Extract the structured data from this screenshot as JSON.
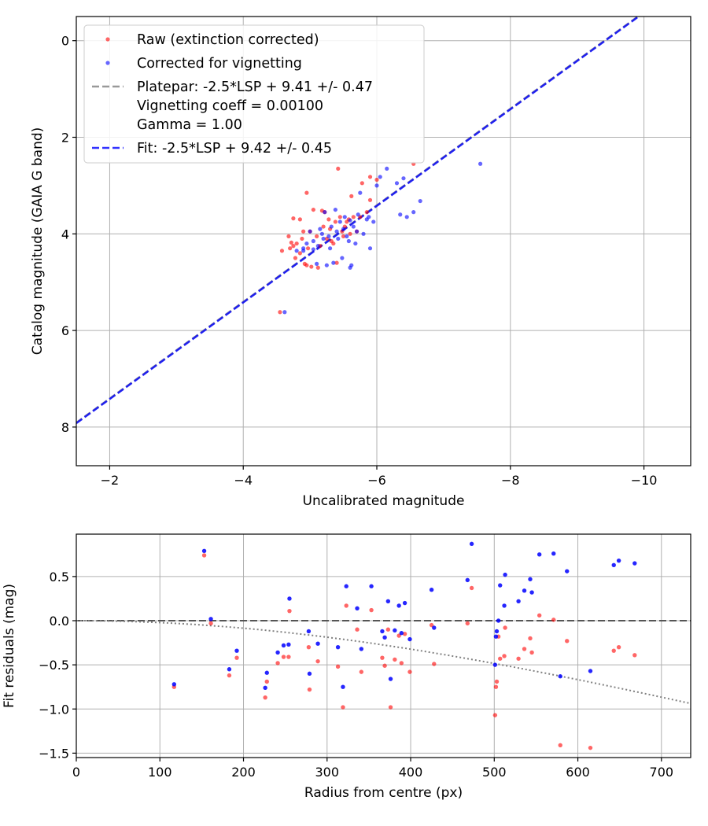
{
  "chart_data": [
    {
      "type": "scatter",
      "xlabel": "Uncalibrated magnitude",
      "ylabel": "Catalog magnitude (GAIA G band)",
      "xlim": [
        -1.5,
        -10.7
      ],
      "ylim": [
        8.8,
        -0.5
      ],
      "x_inverted": true,
      "y_inverted": true,
      "xticks": [
        -2,
        -4,
        -6,
        -8,
        -10
      ],
      "xtick_labels": [
        "−2",
        "−4",
        "−6",
        "−8",
        "−10"
      ],
      "yticks": [
        0,
        2,
        4,
        6,
        8
      ],
      "ytick_labels": [
        "0",
        "2",
        "4",
        "6",
        "8"
      ],
      "grid": true,
      "legend_position": "top-left",
      "legend": [
        {
          "label": "Raw (extinction corrected)",
          "kind": "marker",
          "color": "#ff0000"
        },
        {
          "label": "Corrected for vignetting",
          "kind": "marker",
          "color": "#0000ff"
        },
        {
          "label": "Platepar: -2.5*LSP + 9.41 +/- 0.47",
          "kind": "dashed",
          "color": "#808080"
        },
        {
          "label": "Vignetting coeff = 0.00100",
          "kind": "none",
          "color": ""
        },
        {
          "label": "Gamma = 1.00",
          "kind": "none",
          "color": ""
        },
        {
          "label": "Fit: -2.5*LSP + 9.42 +/- 0.45",
          "kind": "dashed",
          "color": "#0000ff"
        }
      ],
      "series": [
        {
          "name": "Raw (extinction corrected)",
          "color": "#ff0000",
          "points": [
            [
              -4.55,
              5.62
            ],
            [
              -4.58,
              4.35
            ],
            [
              -4.68,
              4.05
            ],
            [
              -4.7,
              4.3
            ],
            [
              -4.75,
              4.25
            ],
            [
              -4.72,
              4.18
            ],
            [
              -4.78,
              4.5
            ],
            [
              -4.8,
              4.2
            ],
            [
              -4.85,
              4.4
            ],
            [
              -4.88,
              4.1
            ],
            [
              -4.9,
              3.95
            ],
            [
              -4.92,
              4.62
            ],
            [
              -4.95,
              4.65
            ],
            [
              -4.97,
              4.3
            ],
            [
              -5.0,
              3.95
            ],
            [
              -5.02,
              4.68
            ],
            [
              -5.05,
              3.5
            ],
            [
              -5.1,
              4.05
            ],
            [
              -5.12,
              4.7
            ],
            [
              -5.15,
              4.25
            ],
            [
              -5.2,
              3.85
            ],
            [
              -5.22,
              3.55
            ],
            [
              -5.25,
              4.1
            ],
            [
              -5.28,
              3.7
            ],
            [
              -5.3,
              3.9
            ],
            [
              -5.32,
              4.15
            ],
            [
              -5.35,
              4.2
            ],
            [
              -5.38,
              3.75
            ],
            [
              -5.4,
              4.6
            ],
            [
              -5.42,
              2.65
            ],
            [
              -5.45,
              3.65
            ],
            [
              -5.48,
              3.95
            ],
            [
              -5.5,
              4.05
            ],
            [
              -5.52,
              3.85
            ],
            [
              -5.55,
              3.75
            ],
            [
              -5.58,
              3.7
            ],
            [
              -5.6,
              4.0
            ],
            [
              -5.62,
              3.22
            ],
            [
              -5.65,
              3.65
            ],
            [
              -5.7,
              3.95
            ],
            [
              -5.75,
              3.65
            ],
            [
              -5.78,
              2.95
            ],
            [
              -5.85,
              3.55
            ],
            [
              -5.9,
              3.3
            ],
            [
              -5.9,
              2.82
            ],
            [
              -6.0,
              2.88
            ],
            [
              -6.55,
              2.55
            ],
            [
              -4.85,
              3.7
            ],
            [
              -4.95,
              3.15
            ],
            [
              -5.18,
              3.52
            ],
            [
              -4.75,
              3.68
            ]
          ]
        },
        {
          "name": "Corrected for vignetting",
          "color": "#0000ff",
          "points": [
            [
              -4.62,
              5.62
            ],
            [
              -4.8,
              4.35
            ],
            [
              -4.9,
              4.3
            ],
            [
              -4.95,
              4.2
            ],
            [
              -5.0,
              3.95
            ],
            [
              -5.05,
              4.15
            ],
            [
              -5.1,
              4.62
            ],
            [
              -5.12,
              4.25
            ],
            [
              -5.15,
              3.9
            ],
            [
              -5.18,
              4.0
            ],
            [
              -5.2,
              4.1
            ],
            [
              -5.22,
              3.55
            ],
            [
              -5.25,
              4.65
            ],
            [
              -5.28,
              4.05
            ],
            [
              -5.3,
              4.3
            ],
            [
              -5.32,
              3.85
            ],
            [
              -5.35,
              4.6
            ],
            [
              -5.38,
              3.5
            ],
            [
              -5.4,
              3.95
            ],
            [
              -5.42,
              4.1
            ],
            [
              -5.45,
              3.75
            ],
            [
              -5.48,
              4.5
            ],
            [
              -5.5,
              3.9
            ],
            [
              -5.52,
              3.65
            ],
            [
              -5.55,
              4.05
            ],
            [
              -5.58,
              4.15
            ],
            [
              -5.6,
              4.7
            ],
            [
              -5.62,
              4.65
            ],
            [
              -5.65,
              3.85
            ],
            [
              -5.68,
              4.2
            ],
            [
              -5.7,
              3.95
            ],
            [
              -5.72,
              3.6
            ],
            [
              -5.75,
              3.15
            ],
            [
              -5.8,
              4.0
            ],
            [
              -5.85,
              3.7
            ],
            [
              -5.88,
              3.65
            ],
            [
              -5.9,
              4.3
            ],
            [
              -5.95,
              3.75
            ],
            [
              -6.0,
              3.0
            ],
            [
              -6.05,
              2.82
            ],
            [
              -6.15,
              2.65
            ],
            [
              -6.3,
              2.95
            ],
            [
              -6.35,
              3.6
            ],
            [
              -6.4,
              2.85
            ],
            [
              -6.45,
              3.65
            ],
            [
              -6.55,
              3.55
            ],
            [
              -6.65,
              3.32
            ],
            [
              -7.55,
              2.55
            ],
            [
              -5.05,
              4.32
            ],
            [
              -5.6,
              3.72
            ],
            [
              -4.9,
              4.35
            ]
          ]
        }
      ],
      "lines": [
        {
          "name": "Platepar",
          "style": "dashed",
          "color": "#808080",
          "slope": 1.0,
          "intercept": 9.41
        },
        {
          "name": "Fit",
          "style": "dashed",
          "color": "#0000ff",
          "slope": 1.0,
          "intercept": 9.42
        }
      ]
    },
    {
      "type": "scatter",
      "xlabel": "Radius from centre (px)",
      "ylabel": "Fit residuals (mag)",
      "xlim": [
        0,
        735
      ],
      "ylim": [
        -1.55,
        0.98
      ],
      "xticks": [
        0,
        100,
        200,
        300,
        400,
        500,
        600,
        700
      ],
      "xtick_labels": [
        "0",
        "100",
        "200",
        "300",
        "400",
        "500",
        "600",
        "700"
      ],
      "yticks": [
        0.5,
        0.0,
        -0.5,
        -1.0,
        -1.5
      ],
      "ytick_labels": [
        "0.5",
        "0.0",
        "−0.5",
        "−1.0",
        "−1.5"
      ],
      "grid": true,
      "reference_lines": [
        {
          "name": "zero",
          "style": "dashed",
          "color": "#555555",
          "value": 0.0
        },
        {
          "name": "vignetting",
          "style": "dotted",
          "color": "#808080",
          "model": "-1.0857*ln(cos(atan(0.001*r)))^4 negative",
          "coeff": 0.001
        }
      ],
      "series": [
        {
          "name": "Raw (extinction corrected)",
          "color": "#ff0000",
          "points": [
            [
              117,
              -0.75
            ],
            [
              153,
              0.74
            ],
            [
              161,
              -0.03
            ],
            [
              183,
              -0.62
            ],
            [
              192,
              -0.42
            ],
            [
              226,
              -0.87
            ],
            [
              228,
              -0.69
            ],
            [
              241,
              -0.48
            ],
            [
              248,
              -0.41
            ],
            [
              254,
              -0.41
            ],
            [
              255,
              0.11
            ],
            [
              278,
              -0.3
            ],
            [
              279,
              -0.78
            ],
            [
              289,
              -0.46
            ],
            [
              313,
              -0.52
            ],
            [
              319,
              -0.98
            ],
            [
              323,
              0.17
            ],
            [
              336,
              -0.1
            ],
            [
              341,
              -0.58
            ],
            [
              353,
              0.12
            ],
            [
              366,
              -0.42
            ],
            [
              369,
              -0.51
            ],
            [
              373,
              -0.1
            ],
            [
              376,
              -0.98
            ],
            [
              381,
              -0.44
            ],
            [
              386,
              -0.17
            ],
            [
              389,
              -0.48
            ],
            [
              393,
              -0.15
            ],
            [
              399,
              -0.58
            ],
            [
              425,
              -0.05
            ],
            [
              428,
              -0.49
            ],
            [
              468,
              -0.03
            ],
            [
              473,
              0.37
            ],
            [
              501,
              -1.07
            ],
            [
              502,
              -0.75
            ],
            [
              503,
              -0.69
            ],
            [
              505,
              -0.18
            ],
            [
              507,
              -0.43
            ],
            [
              512,
              -0.4
            ],
            [
              513,
              -0.08
            ],
            [
              529,
              -0.43
            ],
            [
              536,
              -0.32
            ],
            [
              543,
              -0.2
            ],
            [
              545,
              -0.36
            ],
            [
              554,
              0.06
            ],
            [
              571,
              0.01
            ],
            [
              579,
              -1.41
            ],
            [
              587,
              -0.23
            ],
            [
              615,
              -1.44
            ],
            [
              643,
              -0.34
            ],
            [
              649,
              -0.3
            ],
            [
              668,
              -0.39
            ]
          ]
        },
        {
          "name": "Corrected for vignetting",
          "color": "#0000ff",
          "points": [
            [
              117,
              -0.72
            ],
            [
              153,
              0.79
            ],
            [
              161,
              0.02
            ],
            [
              183,
              -0.55
            ],
            [
              192,
              -0.34
            ],
            [
              226,
              -0.76
            ],
            [
              228,
              -0.59
            ],
            [
              241,
              -0.36
            ],
            [
              248,
              -0.28
            ],
            [
              254,
              -0.27
            ],
            [
              255,
              0.25
            ],
            [
              278,
              -0.12
            ],
            [
              279,
              -0.6
            ],
            [
              289,
              -0.26
            ],
            [
              313,
              -0.3
            ],
            [
              319,
              -0.75
            ],
            [
              323,
              0.39
            ],
            [
              336,
              0.14
            ],
            [
              341,
              -0.32
            ],
            [
              353,
              0.39
            ],
            [
              366,
              -0.12
            ],
            [
              369,
              -0.19
            ],
            [
              373,
              0.22
            ],
            [
              376,
              -0.66
            ],
            [
              381,
              -0.11
            ],
            [
              386,
              0.17
            ],
            [
              389,
              -0.14
            ],
            [
              393,
              0.2
            ],
            [
              399,
              -0.21
            ],
            [
              425,
              0.35
            ],
            [
              428,
              -0.08
            ],
            [
              468,
              0.46
            ],
            [
              473,
              0.87
            ],
            [
              501,
              -0.5
            ],
            [
              502,
              -0.18
            ],
            [
              503,
              -0.12
            ],
            [
              505,
              0.0
            ],
            [
              507,
              0.4
            ],
            [
              512,
              0.17
            ],
            [
              513,
              0.52
            ],
            [
              529,
              0.22
            ],
            [
              536,
              0.34
            ],
            [
              543,
              0.47
            ],
            [
              545,
              0.32
            ],
            [
              554,
              0.75
            ],
            [
              571,
              0.76
            ],
            [
              579,
              -0.63
            ],
            [
              587,
              0.56
            ],
            [
              615,
              -0.57
            ],
            [
              643,
              0.63
            ],
            [
              649,
              0.68
            ],
            [
              668,
              0.65
            ]
          ]
        }
      ]
    }
  ]
}
